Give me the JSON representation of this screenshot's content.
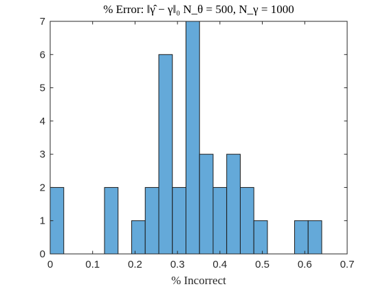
{
  "chart_data": {
    "type": "bar",
    "subtype": "histogram",
    "title": "% Error: ‖γ̂ − γ‖₀ N_θ = 500, N_γ = 1000",
    "xlabel": "% Incorrect",
    "ylabel": "",
    "xlim": [
      0,
      0.7
    ],
    "ylim": [
      0,
      7
    ],
    "x_ticks": [
      "0",
      "0.1",
      "0.2",
      "0.3",
      "0.4",
      "0.5",
      "0.6",
      "0.7"
    ],
    "y_ticks": [
      "0",
      "1",
      "2",
      "3",
      "4",
      "5",
      "6",
      "7"
    ],
    "grid": false,
    "legend": false,
    "bin_width": 0.032,
    "bins": [
      {
        "start": 0.0,
        "count": 2
      },
      {
        "start": 0.128,
        "count": 2
      },
      {
        "start": 0.192,
        "count": 1
      },
      {
        "start": 0.224,
        "count": 2
      },
      {
        "start": 0.256,
        "count": 6
      },
      {
        "start": 0.288,
        "count": 2
      },
      {
        "start": 0.32,
        "count": 7
      },
      {
        "start": 0.352,
        "count": 3
      },
      {
        "start": 0.384,
        "count": 2
      },
      {
        "start": 0.416,
        "count": 3
      },
      {
        "start": 0.448,
        "count": 2
      },
      {
        "start": 0.48,
        "count": 1
      },
      {
        "start": 0.576,
        "count": 1
      },
      {
        "start": 0.608,
        "count": 1
      }
    ],
    "colors": {
      "bar_fill": "#64a9d9",
      "bar_edge": "#1a1a1a",
      "axis": "#262626"
    }
  }
}
